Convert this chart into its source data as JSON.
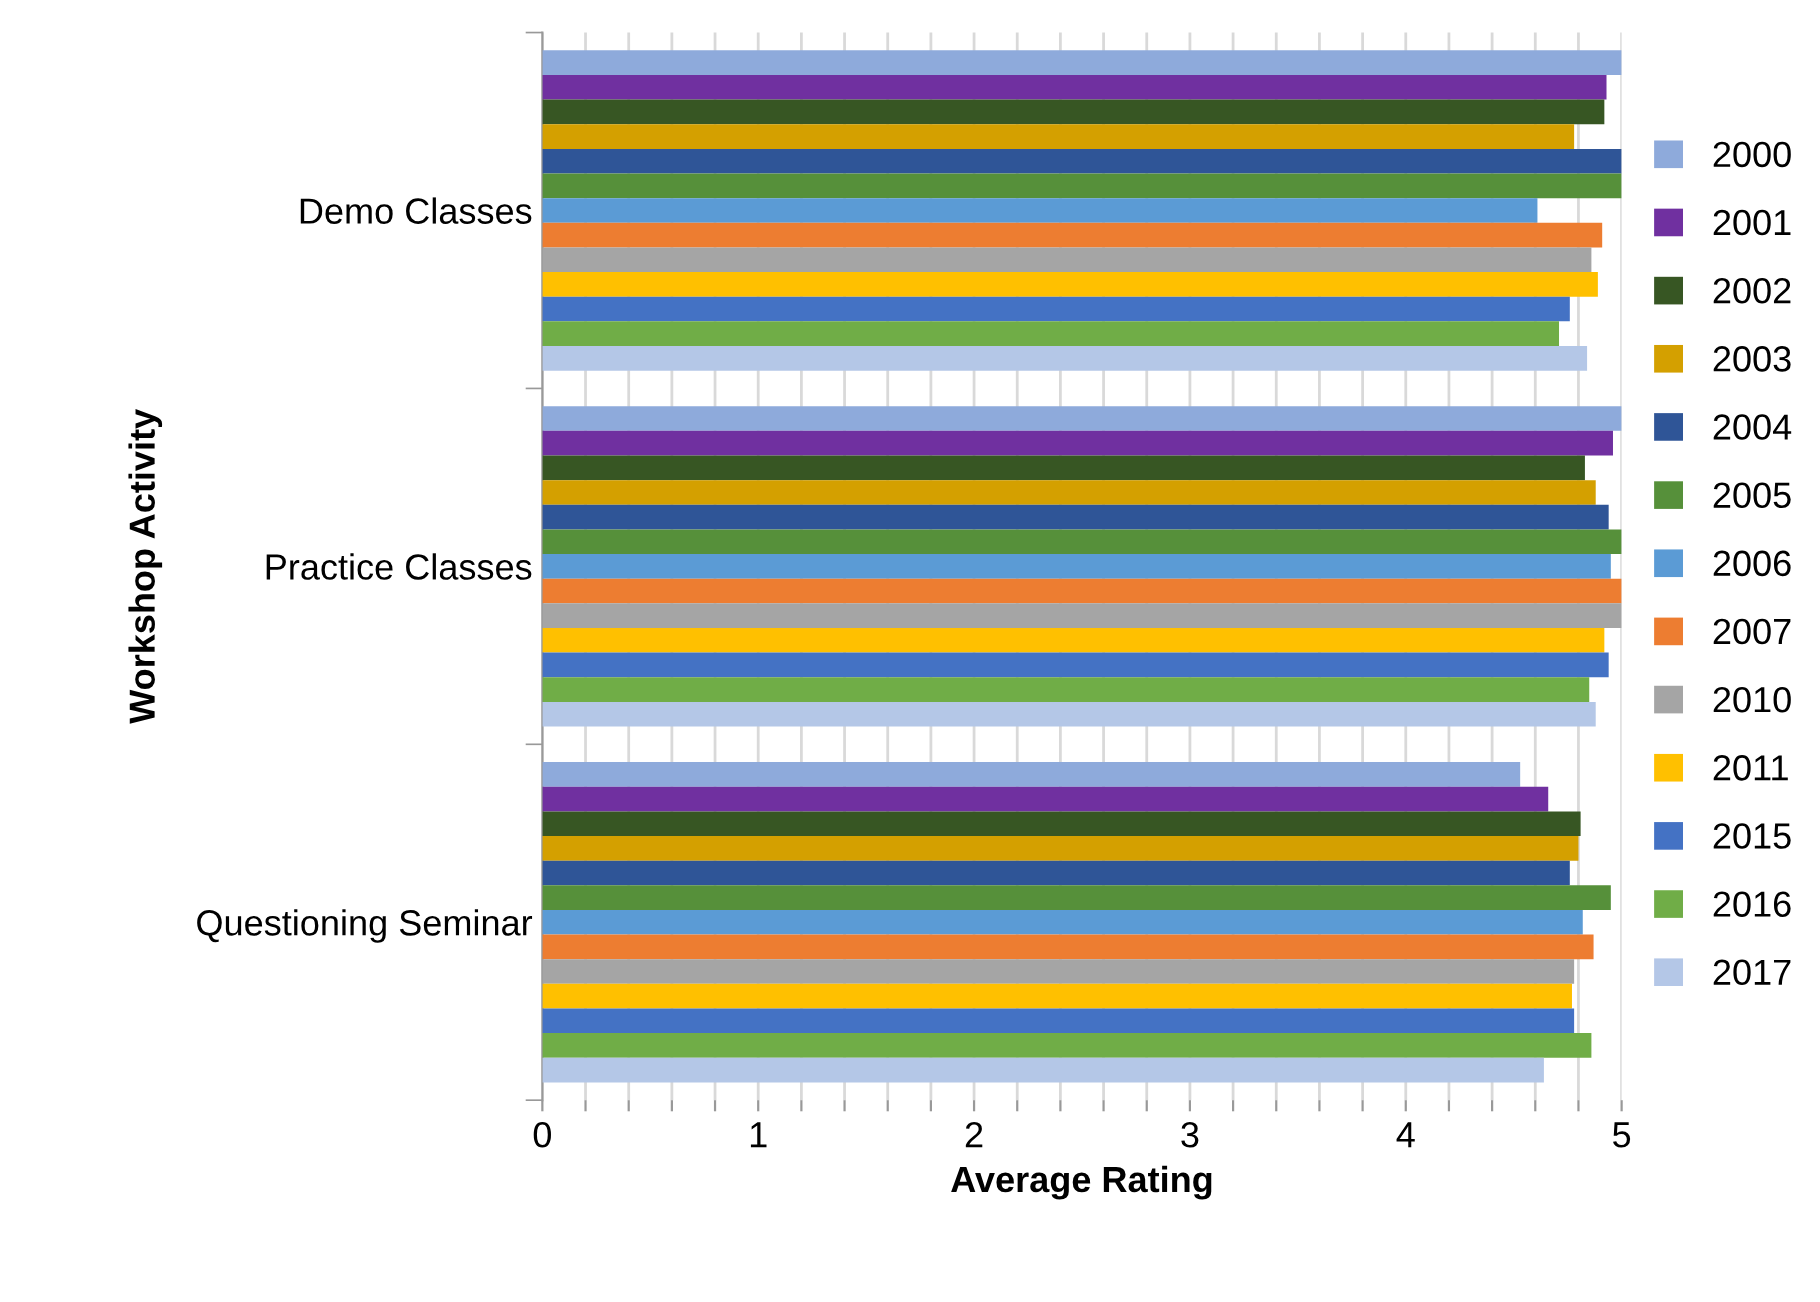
{
  "chart_data": {
    "type": "bar",
    "orientation": "horizontal",
    "xlabel": "Average Rating",
    "ylabel": "Workshop Activity",
    "categories": [
      "Demo Classes",
      "Practice Classes",
      "Questioning Seminar"
    ],
    "series": [
      {
        "name": "2000",
        "color": "#8eaadb",
        "values": [
          5.0,
          5.0,
          4.53
        ]
      },
      {
        "name": "2001",
        "color": "#7030a0",
        "values": [
          4.93,
          4.96,
          4.66
        ]
      },
      {
        "name": "2002",
        "color": "#375623",
        "values": [
          4.92,
          4.83,
          4.81
        ]
      },
      {
        "name": "2003",
        "color": "#d4a000",
        "values": [
          4.78,
          4.88,
          4.8
        ]
      },
      {
        "name": "2004",
        "color": "#2f5597",
        "values": [
          5.0,
          4.94,
          4.76
        ]
      },
      {
        "name": "2005",
        "color": "#56903a",
        "values": [
          5.0,
          5.0,
          4.95
        ]
      },
      {
        "name": "2006",
        "color": "#5b9bd5",
        "values": [
          4.61,
          4.95,
          4.82
        ]
      },
      {
        "name": "2007",
        "color": "#ed7d31",
        "values": [
          4.91,
          5.0,
          4.87
        ]
      },
      {
        "name": "2010",
        "color": "#a5a5a5",
        "values": [
          4.86,
          5.0,
          4.78
        ]
      },
      {
        "name": "2011",
        "color": "#ffc000",
        "values": [
          4.89,
          4.92,
          4.77
        ]
      },
      {
        "name": "2015",
        "color": "#4472c4",
        "values": [
          4.76,
          4.94,
          4.78
        ]
      },
      {
        "name": "2016",
        "color": "#70ad47",
        "values": [
          4.71,
          4.85,
          4.86
        ]
      },
      {
        "name": "2017",
        "color": "#b4c7e7",
        "values": [
          4.84,
          4.88,
          4.64
        ]
      }
    ],
    "xlim": [
      0,
      5
    ],
    "xticks": [
      0,
      {
        "value": 0.2,
        "label": null
      },
      {
        "value": 0.4,
        "label": null
      },
      {
        "value": 0.6,
        "label": null
      },
      {
        "value": 0.8,
        "label": null
      },
      1,
      {
        "value": 1.2,
        "label": null
      },
      {
        "value": 1.4,
        "label": null
      },
      {
        "value": 1.6,
        "label": null
      },
      {
        "value": 1.8,
        "label": null
      },
      2,
      {
        "value": 2.2,
        "label": null
      },
      {
        "value": 2.4,
        "label": null
      },
      {
        "value": 2.6,
        "label": null
      },
      {
        "value": 2.8,
        "label": null
      },
      3,
      {
        "value": 3.2,
        "label": null
      },
      {
        "value": 3.4,
        "label": null
      },
      {
        "value": 3.6,
        "label": null
      },
      {
        "value": 3.8,
        "label": null
      },
      4,
      {
        "value": 4.2,
        "label": null
      },
      {
        "value": 4.4,
        "label": null
      },
      {
        "value": 4.6,
        "label": null
      },
      {
        "value": 4.8,
        "label": null
      },
      5
    ],
    "grid": "x",
    "legend": "right"
  }
}
